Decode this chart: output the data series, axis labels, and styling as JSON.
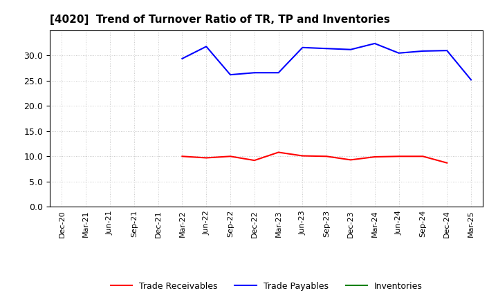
{
  "title": "[4020]  Trend of Turnover Ratio of TR, TP and Inventories",
  "x_labels": [
    "Dec-20",
    "Mar-21",
    "Jun-21",
    "Sep-21",
    "Dec-21",
    "Mar-22",
    "Jun-22",
    "Sep-22",
    "Dec-22",
    "Mar-23",
    "Jun-23",
    "Sep-23",
    "Dec-23",
    "Mar-24",
    "Jun-24",
    "Sep-24",
    "Dec-24",
    "Mar-25"
  ],
  "trade_receivables": [
    null,
    null,
    null,
    null,
    null,
    10.0,
    9.7,
    10.0,
    9.2,
    10.8,
    10.1,
    10.0,
    9.3,
    9.9,
    10.0,
    10.0,
    8.7,
    null
  ],
  "trade_payables": [
    null,
    null,
    null,
    null,
    null,
    29.4,
    31.8,
    26.2,
    26.6,
    26.6,
    31.6,
    31.4,
    31.2,
    32.4,
    30.5,
    30.9,
    31.0,
    25.2
  ],
  "inventories": [
    null,
    null,
    null,
    null,
    null,
    null,
    null,
    null,
    null,
    null,
    null,
    null,
    null,
    null,
    null,
    null,
    null,
    null
  ],
  "ylim": [
    0,
    35
  ],
  "yticks": [
    0.0,
    5.0,
    10.0,
    15.0,
    20.0,
    25.0,
    30.0
  ],
  "line_colors": {
    "trade_receivables": "#ff0000",
    "trade_payables": "#0000ff",
    "inventories": "#008000"
  },
  "legend_labels": [
    "Trade Receivables",
    "Trade Payables",
    "Inventories"
  ],
  "background_color": "#ffffff",
  "grid_color": "#bbbbbb",
  "title_fontsize": 11
}
